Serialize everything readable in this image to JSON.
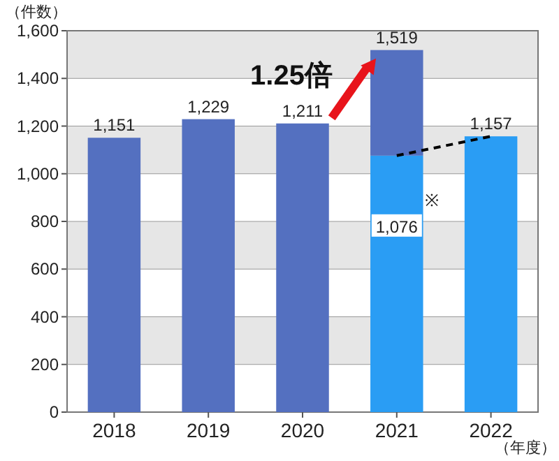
{
  "chart_data": {
    "type": "bar",
    "stacked": true,
    "categories": [
      "2018",
      "2019",
      "2020",
      "2021",
      "2022"
    ],
    "series": [
      {
        "color": "#2a9df4",
        "values": [
          null,
          null,
          null,
          1076,
          1157
        ],
        "value_labels": [
          null,
          null,
          null,
          "1,076",
          "1,157"
        ]
      },
      {
        "color": "#5470c0",
        "values": [
          1151,
          1229,
          1211,
          443,
          null
        ],
        "value_labels": [
          "1,151",
          "1,229",
          "1,211",
          null,
          null
        ]
      },
      {
        "type": "line",
        "color": "#000000",
        "line_style": "dashed",
        "values": [
          null,
          null,
          null,
          1076,
          1157
        ]
      }
    ],
    "totals": [
      null,
      null,
      null,
      "1,519",
      null
    ],
    "ylim": [
      0,
      1600
    ],
    "yticks": [
      0,
      200,
      400,
      600,
      800,
      {
        "value": 1000,
        "label": "1,000"
      },
      {
        "value": 1200,
        "label": "1,200"
      },
      {
        "value": 1400,
        "label": "1,400"
      },
      {
        "value": 1600,
        "label": "1,600"
      }
    ],
    "grid": "y",
    "bands": [
      {
        "axis": "y",
        "from": 200,
        "to": 400,
        "color": "#e6e6e6"
      },
      {
        "axis": "y",
        "from": 600,
        "to": 800,
        "color": "#e6e6e6"
      },
      {
        "axis": "y",
        "from": 1000,
        "to": 1200,
        "color": "#e6e6e6"
      },
      {
        "axis": "y",
        "from": 1400,
        "to": 1600,
        "color": "#e6e6e6"
      }
    ],
    "ylabel": "（件数）",
    "xlabel": "（年度）",
    "annotations": [
      {
        "text": "1.25倍",
        "x": "2020",
        "y": 1420
      },
      {
        "text": "※",
        "x": "2021",
        "y": 1076
      }
    ]
  }
}
